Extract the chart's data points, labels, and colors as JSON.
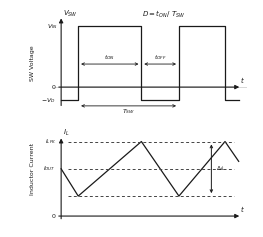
{
  "fig_width": 2.63,
  "fig_height": 2.37,
  "dpi": 100,
  "bg_color": "#ffffff",
  "line_color": "#1a1a1a",
  "dashed_color": "#444444",
  "sw_ylabel": "SW Voltage",
  "ind_ylabel": "Inductor Current",
  "ton": 0.37,
  "toff": 0.22,
  "vin": 1.0,
  "vd": -0.22,
  "ilpk": 0.82,
  "iout": 0.52,
  "ilmin": 0.22,
  "ts1": 0.1,
  "te1": 0.47,
  "ts2": 0.69,
  "te2": 0.96
}
